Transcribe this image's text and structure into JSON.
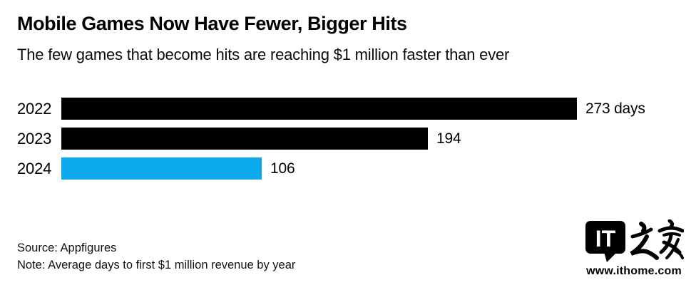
{
  "header": {
    "title": "Mobile Games Now Have Fewer, Bigger Hits",
    "subtitle": "The few games that become hits are reaching $1 million faster than ever"
  },
  "chart_data": {
    "type": "bar",
    "orientation": "horizontal",
    "categories": [
      "2022",
      "2023",
      "2024"
    ],
    "values": [
      273,
      194,
      106
    ],
    "value_labels": [
      "273 days",
      "194",
      "106"
    ],
    "bar_colors": [
      "#000000",
      "#000000",
      "#0da9ef"
    ],
    "xlim": [
      0,
      273
    ],
    "unit": "days",
    "grid": false,
    "legend": null,
    "title": "Mobile Games Now Have Fewer, Bigger Hits",
    "xlabel": "",
    "ylabel": ""
  },
  "footer": {
    "source": "Source: Appfigures",
    "note": "Note: Average days to first $1 million revenue by year"
  },
  "watermark": {
    "logo_text": "IT",
    "site_url": "www.ithome.com"
  },
  "colors": {
    "accent_blue": "#0da9ef",
    "bar_black": "#000000",
    "background": "#ffffff"
  }
}
